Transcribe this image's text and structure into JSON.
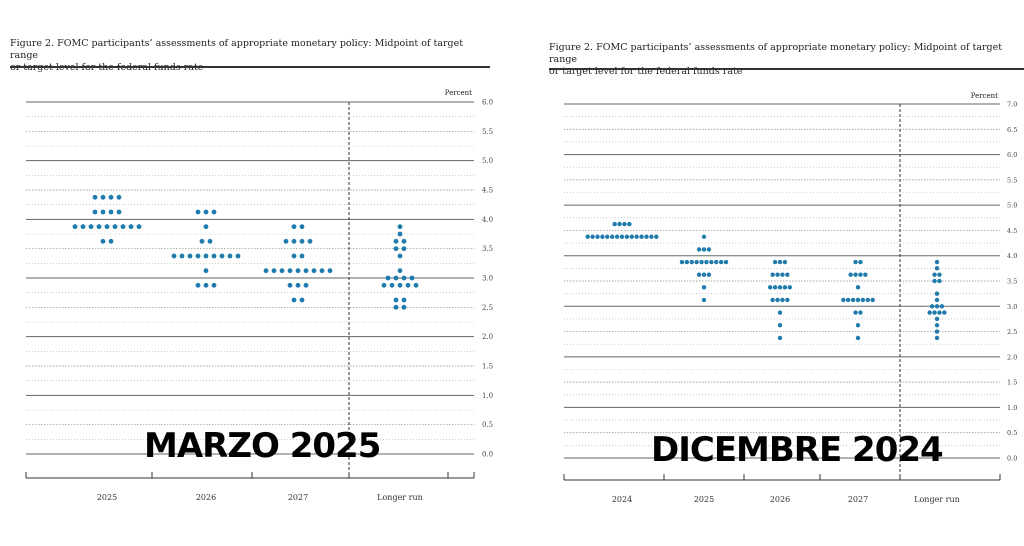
{
  "charts": [
    {
      "caption": "Figure 2.  FOMC participants’ assessments of appropriate monetary policy:  Midpoint of target range\nor target level for the federal funds rate",
      "overlay_label": "MARZO 2025",
      "unit_label": "Percent",
      "dot_color": "#1f7bab"
    },
    {
      "caption": "Figure 2.  FOMC participants’ assessments of appropriate monetary policy:  Midpoint of target range\nor target level for the federal funds rate",
      "overlay_label": "DICEMBRE 2024",
      "unit_label": "Percent",
      "dot_color": "#1f7bab"
    }
  ],
  "chart_data": [
    {
      "type": "scatter",
      "title": "MARZO 2025",
      "ylabel": "Percent",
      "ylim": [
        0,
        6
      ],
      "yticks": [
        "0.0",
        "0.5",
        "1.0",
        "1.5",
        "2.0",
        "2.5",
        "3.0",
        "3.5",
        "4.0",
        "4.5",
        "5.0",
        "5.5",
        "6.0"
      ],
      "categories": [
        "2025",
        "2026",
        "2027",
        "Longer run"
      ],
      "dots": [
        [
          [
            4.375,
            4
          ],
          [
            4.125,
            4
          ],
          [
            3.875,
            9
          ],
          [
            3.625,
            2
          ]
        ],
        [
          [
            4.125,
            3
          ],
          [
            3.875,
            1
          ],
          [
            3.625,
            2
          ],
          [
            3.375,
            9
          ],
          [
            3.125,
            1
          ],
          [
            2.875,
            3
          ]
        ],
        [
          [
            3.875,
            2
          ],
          [
            3.625,
            4
          ],
          [
            3.375,
            2
          ],
          [
            3.125,
            9
          ],
          [
            2.875,
            3
          ],
          [
            2.625,
            2
          ]
        ],
        [
          [
            3.875,
            1
          ],
          [
            3.75,
            1
          ],
          [
            3.625,
            2
          ],
          [
            3.5,
            2
          ],
          [
            3.375,
            1
          ],
          [
            3.125,
            1
          ],
          [
            3.0,
            4
          ],
          [
            2.875,
            5
          ],
          [
            2.625,
            2
          ],
          [
            2.5,
            2
          ]
        ]
      ]
    },
    {
      "type": "scatter",
      "title": "DICEMBRE 2024",
      "ylabel": "Percent",
      "ylim": [
        0,
        7
      ],
      "yticks": [
        "0.0",
        "0.5",
        "1.0",
        "1.5",
        "2.0",
        "2.5",
        "3.0",
        "3.5",
        "4.0",
        "4.5",
        "5.0",
        "5.5",
        "6.0",
        "6.5",
        "7.0"
      ],
      "categories": [
        "2024",
        "2025",
        "2026",
        "2027",
        "Longer run"
      ],
      "dots": [
        [
          [
            4.625,
            4
          ],
          [
            4.375,
            15
          ]
        ],
        [
          [
            4.375,
            1
          ],
          [
            4.125,
            3
          ],
          [
            3.875,
            10
          ],
          [
            3.625,
            3
          ],
          [
            3.375,
            1
          ],
          [
            3.125,
            1
          ]
        ],
        [
          [
            3.875,
            3
          ],
          [
            3.625,
            4
          ],
          [
            3.375,
            5
          ],
          [
            3.125,
            4
          ],
          [
            2.875,
            1
          ],
          [
            2.625,
            1
          ],
          [
            2.375,
            1
          ]
        ],
        [
          [
            3.875,
            2
          ],
          [
            3.625,
            4
          ],
          [
            3.375,
            1
          ],
          [
            3.125,
            7
          ],
          [
            2.875,
            2
          ],
          [
            2.625,
            1
          ],
          [
            2.375,
            1
          ]
        ],
        [
          [
            3.875,
            1
          ],
          [
            3.75,
            1
          ],
          [
            3.625,
            2
          ],
          [
            3.5,
            2
          ],
          [
            3.25,
            1
          ],
          [
            3.125,
            1
          ],
          [
            3.0,
            3
          ],
          [
            2.875,
            4
          ],
          [
            2.75,
            1
          ],
          [
            2.625,
            1
          ],
          [
            2.5,
            1
          ],
          [
            2.375,
            1
          ]
        ]
      ]
    }
  ]
}
